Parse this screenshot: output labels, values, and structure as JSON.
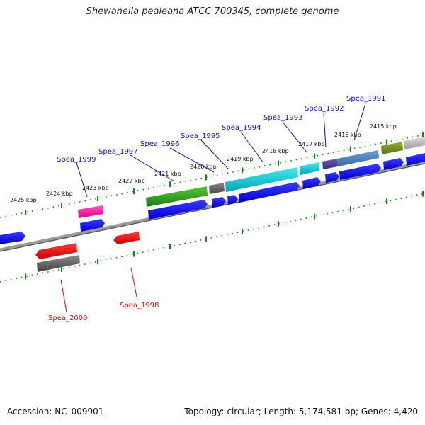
{
  "title": "Shewanella pealeana ATCC 700345, complete genome",
  "footer": {
    "accession": "Accession: NC_009901",
    "stats": "Topology: circular; Length: 5,174,581 bp; Genes: 4,420"
  },
  "kbp_labels": [
    "2425 kbp",
    "2424 kbp",
    "2423 kbp",
    "2422 kbp",
    "2421 kbp",
    "2420 kbp",
    "2419 kbp",
    "2418 kbp",
    "2417 kbp",
    "2416 kbp",
    "2415 kbp"
  ],
  "gene_labels_forward": [
    "Spea_1999",
    "Spea_1997",
    "Spea_1996",
    "Spea_1995",
    "Spea_1994",
    "Spea_1993",
    "Spea_1992",
    "Spea_1991"
  ],
  "gene_labels_reverse": [
    "Spea_2000",
    "Spea_1998"
  ],
  "colors": {
    "forward_cds": "#0000ee",
    "reverse_cds": "#ee0000",
    "forward_label": "#1010c8",
    "reverse_label": "#d01010",
    "tick": "#118811",
    "backbone": "#777777"
  }
}
